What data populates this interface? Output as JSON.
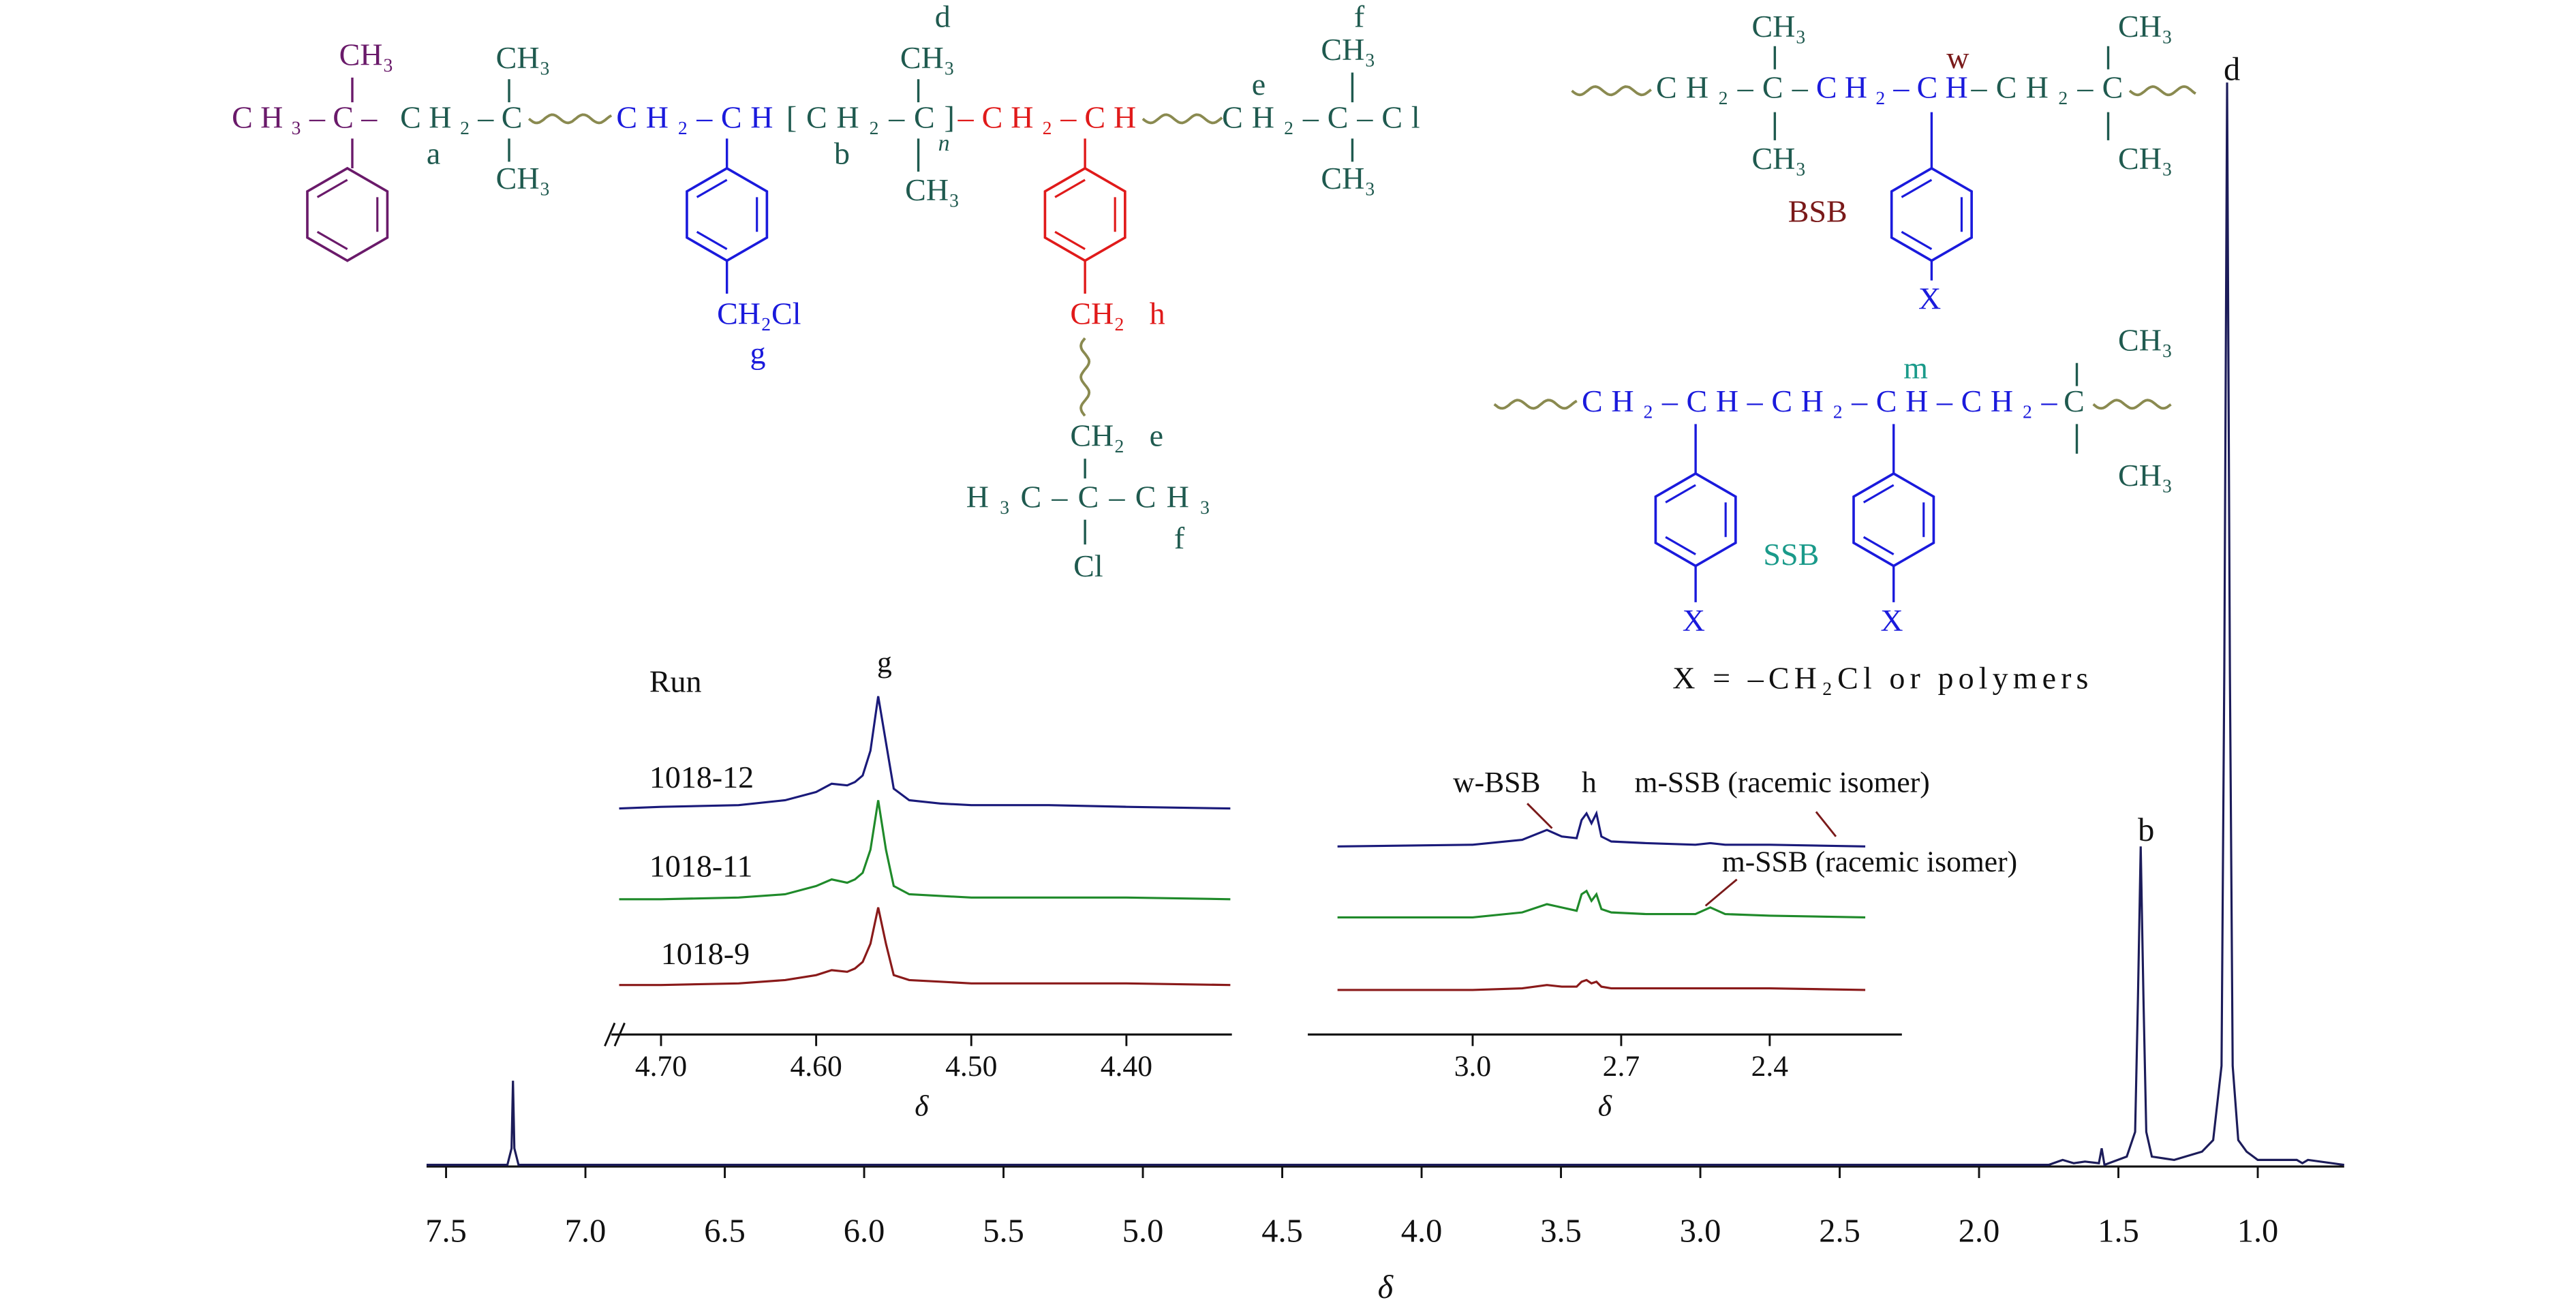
{
  "chart_data": [
    {
      "type": "line",
      "xlabel": "δ",
      "xlim": [
        7.57,
        0.69
      ],
      "xticks": [
        7.5,
        {
          "value": 7,
          "label": "7.0"
        },
        6.5,
        {
          "value": 6,
          "label": "6.0"
        },
        5.5,
        {
          "value": 5,
          "label": "5.0"
        },
        4.5,
        {
          "value": 4,
          "label": "4.0"
        },
        3.5,
        {
          "value": 3,
          "label": "3.0"
        },
        2.5,
        {
          "value": 2,
          "label": "2.0"
        },
        1.5,
        {
          "value": 1,
          "label": "1.0"
        }
      ],
      "peak_labels": [
        "b",
        "d"
      ],
      "x": [
        7.57,
        7.28,
        7.265,
        7.26,
        7.255,
        7.24,
        1.75,
        1.7,
        1.66,
        1.62,
        1.57,
        1.56,
        1.55,
        1.47,
        1.44,
        1.43,
        1.42,
        1.41,
        1.4,
        1.38,
        1.3,
        1.2,
        1.16,
        1.13,
        1.12,
        1.11,
        1.1,
        1.09,
        1.07,
        1.04,
        1.0,
        0.86,
        0.84,
        0.82,
        0.69
      ],
      "series": [
        {
          "color": "#1c1c5a",
          "values": [
            0,
            0,
            10,
            51,
            10,
            0,
            0,
            3,
            1,
            2,
            1,
            10,
            0,
            5,
            20,
            100,
            193,
            100,
            20,
            5,
            3,
            8,
            15,
            60,
            300,
            656,
            300,
            60,
            15,
            8,
            3,
            3,
            1,
            3,
            0
          ]
        }
      ]
    },
    {
      "type": "line",
      "xlabel": "δ",
      "xlim": [
        4.732,
        4.332
      ],
      "xticks": [
        {
          "value": 4.7,
          "label": "4.70"
        },
        {
          "value": 4.6,
          "label": "4.60"
        },
        {
          "value": 4.5,
          "label": "4.50"
        },
        {
          "value": 4.4,
          "label": "4.40"
        }
      ],
      "legend_title": "Run",
      "peak_labels": [
        "g"
      ],
      "x": [
        4.727,
        4.7,
        4.65,
        4.62,
        4.6,
        4.59,
        4.58,
        4.575,
        4.57,
        4.565,
        4.56,
        4.555,
        4.55,
        4.54,
        4.52,
        4.5,
        4.45,
        4.4,
        4.333
      ],
      "series": [
        {
          "name": "1018-12",
          "color": "#1a1a7a",
          "values": [
            0,
            1,
            2,
            5,
            10,
            15,
            14,
            16,
            20,
            35,
            68,
            40,
            12,
            5,
            3,
            2,
            2,
            1,
            0
          ]
        },
        {
          "name": "1018-11",
          "color": "#1f8a2a",
          "values": [
            0,
            0,
            1,
            3,
            8,
            12,
            10,
            12,
            16,
            30,
            60,
            30,
            8,
            3,
            2,
            1,
            1,
            1,
            0
          ]
        },
        {
          "name": "1018-9",
          "color": "#8a1a1a",
          "values": [
            0,
            0,
            1,
            3,
            6,
            9,
            8,
            10,
            14,
            25,
            47,
            25,
            6,
            3,
            2,
            1,
            1,
            1,
            0
          ]
        }
      ]
    },
    {
      "type": "line",
      "xlabel": "δ",
      "xlim": [
        3.333,
        2.133
      ],
      "xticks": [
        {
          "value": 3,
          "label": "3.0"
        },
        2.7,
        2.4
      ],
      "peak_labels": [
        "w-BSB",
        "h",
        "m-SSB (racemic isomer)",
        "m-SSB (racemic isomer)"
      ],
      "x": [
        3.273,
        3.0,
        2.9,
        2.85,
        2.82,
        2.79,
        2.78,
        2.77,
        2.76,
        2.75,
        2.74,
        2.72,
        2.65,
        2.55,
        2.52,
        2.49,
        2.4,
        2.207
      ],
      "series": [
        {
          "color": "#1a1a7a",
          "values": [
            0,
            1,
            4,
            10,
            6,
            5,
            16,
            20,
            14,
            20,
            6,
            3,
            2,
            1,
            2,
            1,
            1,
            0
          ]
        },
        {
          "color": "#1f8a2a",
          "values": [
            0,
            0,
            3,
            8,
            6,
            4,
            14,
            16,
            10,
            14,
            5,
            3,
            2,
            2,
            6,
            2,
            1,
            0
          ]
        },
        {
          "color": "#8a1a1a",
          "values": [
            0,
            0,
            1,
            3,
            2,
            2,
            5,
            6,
            4,
            5,
            2,
            1,
            1,
            1,
            1,
            1,
            1,
            0
          ]
        }
      ]
    }
  ],
  "structures": {
    "polymer": [
      "CH₃–C–",
      "CH₃",
      "CH₂–C",
      "a",
      "CH₃",
      "CH₃",
      "CH₂–CH",
      "CH₂Cl",
      "g",
      "[CH₂–C]",
      "n",
      "b",
      "d",
      "CH₃",
      "CH₃",
      "–CH₂–CH",
      "CH₂",
      "h",
      "CH₂",
      "e",
      "H₃C–C–CH₃",
      "f",
      "Cl",
      "CH₂–C–Cl",
      "e",
      "f",
      "CH₃",
      "CH₃"
    ],
    "bsb": [
      "CH₂–C–",
      "CH₃",
      "CH₃",
      "CH₂–CH",
      "w",
      "–CH₂–C",
      "CH₃",
      "CH₃",
      "BSB",
      "X"
    ],
    "ssb": [
      "CH₂–CH–CH₂–CH–CH₂–",
      "C",
      "m",
      "CH₃",
      "CH₃",
      "SSB",
      "X",
      "X",
      "X = –CH₂Cl or polymers"
    ]
  }
}
